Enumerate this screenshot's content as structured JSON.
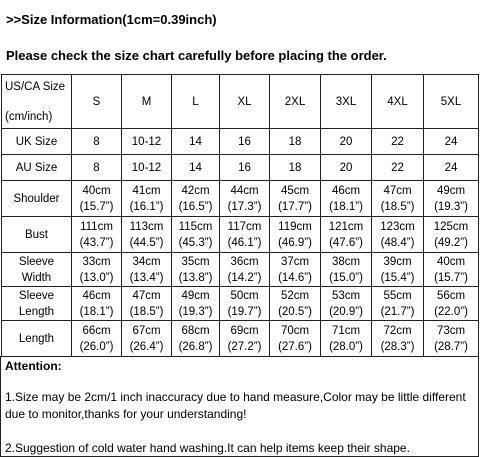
{
  "header": {
    "size_info": ">>Size Information(1cm=0.39inch)",
    "check_note": "Please check the size chart carefully before placing the order."
  },
  "table": {
    "header_label_top": "US/CA Size",
    "header_label_bottom": "(cm/inch)",
    "sizes": [
      "S",
      "M",
      "L",
      "XL",
      "2XL",
      "3XL",
      "4XL",
      "5XL"
    ],
    "uk_label": "UK Size",
    "uk": [
      "8",
      "10-12",
      "14",
      "16",
      "18",
      "20",
      "22",
      "24"
    ],
    "au_label": "AU Size",
    "au": [
      "8",
      "10-12",
      "14",
      "16",
      "18",
      "20",
      "22",
      "24"
    ],
    "shoulder_label": "Shoulder",
    "shoulder_cm": [
      "40cm",
      "41cm",
      "42cm",
      "44cm",
      "45cm",
      "46cm",
      "47cm",
      "49cm"
    ],
    "shoulder_in": [
      "(15.7”)",
      "(16.1”)",
      "(16.5”)",
      "(17.3”)",
      "(17.7”)",
      "(18.1”)",
      "(18.5”)",
      "(19.3”)"
    ],
    "bust_label": "Bust",
    "bust_cm": [
      "111cm",
      "113cm",
      "115cm",
      "117cm",
      "119cm",
      "121cm",
      "123cm",
      "125cm"
    ],
    "bust_in": [
      "(43.7”)",
      "(44.5”)",
      "(45.3”)",
      "(46.1”)",
      "(46.9”)",
      "(47.6”)",
      "(48.4”)",
      "(49.2”)"
    ],
    "sleeve_width_label_top": "Sleeve",
    "sleeve_width_label_bottom": "Width",
    "sleeve_width_cm": [
      "33cm",
      "34cm",
      "35cm",
      "36cm",
      "37cm",
      "38cm",
      "39cm",
      "40cm"
    ],
    "sleeve_width_in": [
      "(13.0”)",
      "(13.4”)",
      "(13.8”)",
      "(14.2”)",
      "(14.6”)",
      "(15.0”)",
      "(15.4”)",
      "(15.7”)"
    ],
    "sleeve_length_label_top": "Sleeve",
    "sleeve_length_label_bottom": "Length",
    "sleeve_length_cm": [
      "46cm",
      "47cm",
      "49cm",
      "50cm",
      "52cm",
      "53cm",
      "55cm",
      "56cm"
    ],
    "sleeve_length_in": [
      "(18.1”)",
      "(18.5”)",
      "(19.3”)",
      "(19.7”)",
      "(20.5”)",
      "(20.9”)",
      "(21.7”)",
      "(22.0”)"
    ],
    "length_label": "Length",
    "length_cm": [
      "66cm",
      "67cm",
      "68cm",
      "69cm",
      "70cm",
      "71cm",
      "72cm",
      "73cm"
    ],
    "length_in": [
      "(26.0”)",
      "(26.4”)",
      "(26.8”)",
      "(27.2”)",
      "(27.6”)",
      "(28.0”)",
      "(28.3”)",
      "(28.7”)"
    ]
  },
  "notes": {
    "attention": "Attention:",
    "note1_line1": "1.Size may be 2cm/1 inch inaccuracy due to hand measure,Color may be little different",
    "note1_line2": " due to monitor,thanks for your understanding!",
    "note2": "2.Suggestion of cold water hand washing.It can help items keep their shape."
  }
}
